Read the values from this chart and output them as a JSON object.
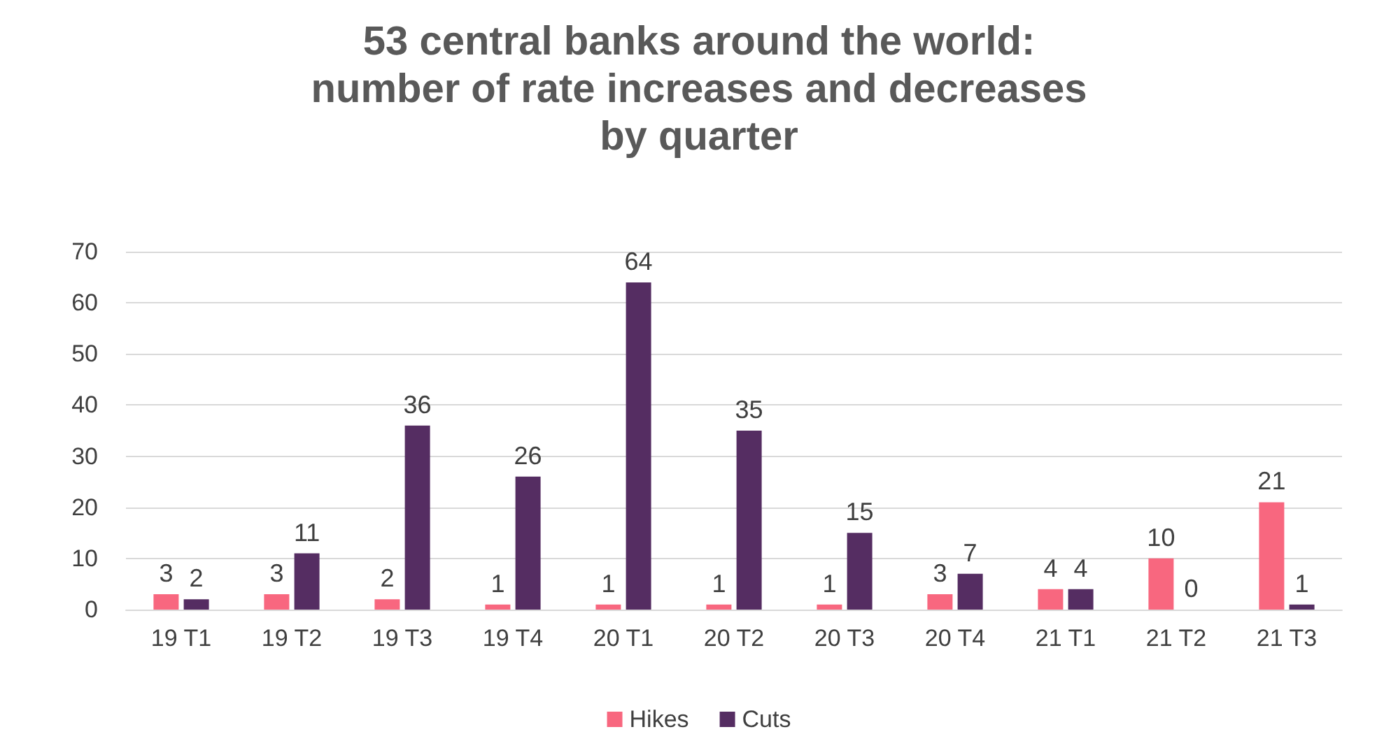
{
  "chart_data": {
    "type": "bar",
    "title": "53 central banks around the world:\nnumber of rate increases and decreases\nby quarter",
    "categories": [
      "19 T1",
      "19 T2",
      "19 T3",
      "19 T4",
      "20 T1",
      "20 T2",
      "20 T3",
      "20 T4",
      "21 T1",
      "21 T2",
      "21 T3"
    ],
    "series": [
      {
        "name": "Hikes",
        "color": "#f8677f",
        "values": [
          3,
          3,
          2,
          1,
          1,
          1,
          1,
          3,
          4,
          10,
          21
        ]
      },
      {
        "name": "Cuts",
        "color": "#552d62",
        "values": [
          2,
          11,
          36,
          26,
          64,
          35,
          15,
          7,
          4,
          0,
          1
        ]
      }
    ],
    "ylim": [
      0,
      70
    ],
    "yticks": [
      0,
      10,
      20,
      30,
      40,
      50,
      60,
      70
    ],
    "grid": "y",
    "legend": "bottom",
    "data_labels": true
  }
}
